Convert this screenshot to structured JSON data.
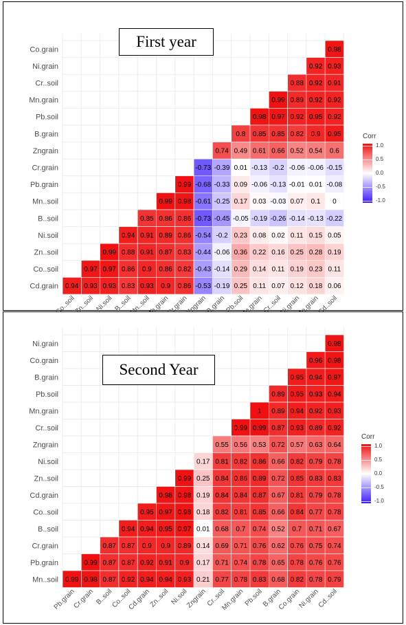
{
  "chart_data": [
    {
      "type": "heatmap",
      "title": "First year",
      "rows": [
        "Co.grain",
        "Ni.grain",
        "Cr..soil",
        "Mn.grain",
        "Pb.soil",
        "B.grain",
        "Zngrain",
        "Cr.grain",
        "Pb.grain",
        "Mn..soil",
        "B..soil",
        "Ni.soil",
        "Zn..soil",
        "Co..soil",
        "Cd.grain"
      ],
      "columns": [
        "Co..soil",
        "Zn..soil",
        "Ni.soil",
        "B..soil",
        "Mn..soil",
        "Pb.grain",
        "Cr.grain",
        "Zngrain",
        "B.grain",
        "Pb.soil",
        "Mn.grain",
        "Cr..soil",
        "Ni.grain",
        "Co.grain",
        "Cd..soil"
      ],
      "values": [
        [
          null,
          null,
          null,
          null,
          null,
          null,
          null,
          null,
          null,
          null,
          null,
          null,
          null,
          null,
          0.98
        ],
        [
          null,
          null,
          null,
          null,
          null,
          null,
          null,
          null,
          null,
          null,
          null,
          null,
          null,
          0.92,
          0.93
        ],
        [
          null,
          null,
          null,
          null,
          null,
          null,
          null,
          null,
          null,
          null,
          null,
          null,
          0.88,
          0.92,
          0.91
        ],
        [
          null,
          null,
          null,
          null,
          null,
          null,
          null,
          null,
          null,
          null,
          null,
          0.99,
          0.89,
          0.92,
          0.92
        ],
        [
          null,
          null,
          null,
          null,
          null,
          null,
          null,
          null,
          null,
          null,
          0.98,
          0.97,
          0.92,
          0.95,
          0.92
        ],
        [
          null,
          null,
          null,
          null,
          null,
          null,
          null,
          null,
          null,
          0.8,
          0.85,
          0.85,
          0.82,
          0.9,
          0.95
        ],
        [
          null,
          null,
          null,
          null,
          null,
          null,
          null,
          null,
          0.74,
          0.49,
          0.61,
          0.66,
          0.52,
          0.54,
          0.6
        ],
        [
          null,
          null,
          null,
          null,
          null,
          null,
          null,
          -0.73,
          -0.39,
          0.01,
          -0.13,
          -0.2,
          -0.06,
          -0.06,
          -0.15
        ],
        [
          null,
          null,
          null,
          null,
          null,
          null,
          0.99,
          -0.68,
          -0.33,
          0.09,
          -0.06,
          -0.13,
          -0.01,
          0.01,
          -0.08
        ],
        [
          null,
          null,
          null,
          null,
          null,
          0.99,
          0.98,
          -0.61,
          -0.25,
          0.17,
          0.03,
          -0.03,
          0.07,
          0.1,
          0
        ],
        [
          null,
          null,
          null,
          null,
          0.85,
          0.86,
          0.86,
          -0.73,
          -0.45,
          -0.05,
          -0.19,
          -0.26,
          -0.14,
          -0.13,
          -0.22
        ],
        [
          null,
          null,
          null,
          0.94,
          0.91,
          0.89,
          0.86,
          -0.54,
          -0.2,
          0.23,
          0.08,
          0.02,
          0.11,
          0.15,
          0.05
        ],
        [
          null,
          null,
          0.99,
          0.88,
          0.91,
          0.87,
          0.83,
          -0.44,
          -0.06,
          0.36,
          0.22,
          0.16,
          0.25,
          0.28,
          0.19
        ],
        [
          null,
          0.97,
          0.97,
          0.86,
          0.9,
          0.86,
          0.82,
          -0.43,
          -0.14,
          0.29,
          0.14,
          0.11,
          0.19,
          0.23,
          0.11
        ],
        [
          0.94,
          0.93,
          0.93,
          0.83,
          0.93,
          0.9,
          0.86,
          -0.53,
          -0.19,
          0.25,
          0.11,
          0.07,
          0.12,
          0.18,
          0.06
        ]
      ],
      "legend": {
        "title": "Corr",
        "ticks": [
          "1.0",
          "0.5",
          "0.0",
          "-0.5",
          "-1.0"
        ],
        "placement": "right"
      },
      "colors": {
        "positive": "#f01010",
        "zero": "#ffffff",
        "negative": "#3b1bff"
      }
    },
    {
      "type": "heatmap",
      "title": "Second Year",
      "rows": [
        "Ni.grain",
        "Co.grain",
        "B.grain",
        "Pb.soil",
        "Mn.grain",
        "Cr..soil",
        "Zngrain",
        "Ni.soil",
        "Zn..soil",
        "Cd.grain",
        "Co..soil",
        "B..soil",
        "Cr.grain",
        "Pb.grain",
        "Mn..soil"
      ],
      "columns": [
        "Pb.grain",
        "Cr.grain",
        "B..soil",
        "Co..soil",
        "Cd.grain",
        "Zn..soil",
        "Ni.soil",
        "Zngrain",
        "Cr..soil",
        "Mn.grain",
        "Pb.soil",
        "B.grain",
        "Co.grain",
        "Ni.grain",
        "Cd..soil"
      ],
      "values": [
        [
          null,
          null,
          null,
          null,
          null,
          null,
          null,
          null,
          null,
          null,
          null,
          null,
          null,
          null,
          0.98
        ],
        [
          null,
          null,
          null,
          null,
          null,
          null,
          null,
          null,
          null,
          null,
          null,
          null,
          null,
          0.96,
          0.98
        ],
        [
          null,
          null,
          null,
          null,
          null,
          null,
          null,
          null,
          null,
          null,
          null,
          null,
          0.95,
          0.94,
          0.97
        ],
        [
          null,
          null,
          null,
          null,
          null,
          null,
          null,
          null,
          null,
          null,
          null,
          0.89,
          0.95,
          0.93,
          0.94
        ],
        [
          null,
          null,
          null,
          null,
          null,
          null,
          null,
          null,
          null,
          null,
          1,
          0.89,
          0.94,
          0.92,
          0.93
        ],
        [
          null,
          null,
          null,
          null,
          null,
          null,
          null,
          null,
          null,
          0.99,
          0.99,
          0.87,
          0.93,
          0.89,
          0.92
        ],
        [
          null,
          null,
          null,
          null,
          null,
          null,
          null,
          null,
          0.55,
          0.56,
          0.53,
          0.72,
          0.57,
          0.63,
          0.64
        ],
        [
          null,
          null,
          null,
          null,
          null,
          null,
          null,
          0.17,
          0.81,
          0.82,
          0.86,
          0.66,
          0.82,
          0.79,
          0.78
        ],
        [
          null,
          null,
          null,
          null,
          null,
          null,
          0.99,
          0.25,
          0.84,
          0.86,
          0.89,
          0.72,
          0.85,
          0.83,
          0.83
        ],
        [
          null,
          null,
          null,
          null,
          null,
          0.98,
          0.98,
          0.19,
          0.84,
          0.84,
          0.87,
          0.67,
          0.81,
          0.79,
          0.78
        ],
        [
          null,
          null,
          null,
          null,
          0.95,
          0.97,
          0.98,
          0.18,
          0.82,
          0.81,
          0.85,
          0.66,
          0.84,
          0.77,
          0.78
        ],
        [
          null,
          null,
          null,
          0.94,
          0.94,
          0.95,
          0.97,
          0.01,
          0.68,
          0.7,
          0.74,
          0.52,
          0.7,
          0.71,
          0.67
        ],
        [
          null,
          null,
          0.87,
          0.87,
          0.9,
          0.9,
          0.89,
          0.14,
          0.69,
          0.71,
          0.76,
          0.62,
          0.76,
          0.75,
          0.74
        ],
        [
          null,
          0.99,
          0.87,
          0.87,
          0.92,
          0.91,
          0.9,
          0.17,
          0.71,
          0.74,
          0.78,
          0.65,
          0.78,
          0.76,
          0.76
        ],
        [
          0.99,
          0.98,
          0.87,
          0.92,
          0.94,
          0.94,
          0.93,
          0.21,
          0.77,
          0.78,
          0.83,
          0.68,
          0.82,
          0.78,
          0.79
        ]
      ],
      "legend": {
        "title": "Corr",
        "ticks": [
          "1.0",
          "0.5",
          "0.0",
          "-0.5",
          "-1.0"
        ],
        "placement": "right"
      },
      "colors": {
        "positive": "#f01010",
        "zero": "#ffffff",
        "negative": "#3b1bff"
      }
    }
  ]
}
